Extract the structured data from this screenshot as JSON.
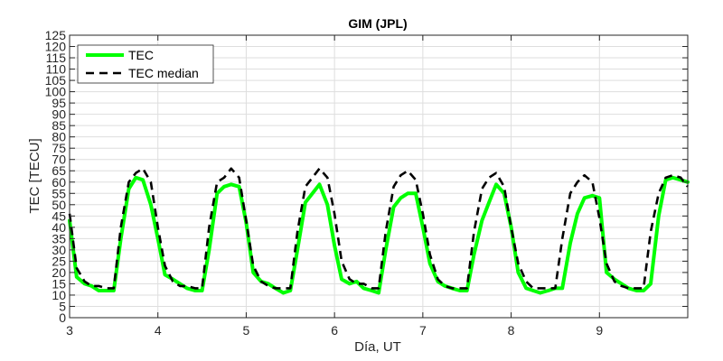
{
  "chart_data": {
    "type": "line",
    "title": "GIM (JPL)",
    "xlabel": "Día, UT",
    "ylabel": "TEC [TECU]",
    "xlim": [
      3,
      10
    ],
    "ylim": [
      0,
      125
    ],
    "xticks": [
      3,
      4,
      5,
      6,
      7,
      8,
      9
    ],
    "yticks": [
      0,
      5,
      10,
      15,
      20,
      25,
      30,
      35,
      40,
      45,
      50,
      55,
      60,
      65,
      70,
      75,
      80,
      85,
      90,
      95,
      100,
      105,
      110,
      115,
      120,
      125
    ],
    "grid": true,
    "legend_position": "top-left",
    "colors": {
      "tec": "#00ff00",
      "median": "#000000"
    },
    "series": [
      {
        "name": "TEC",
        "style": "solid",
        "x": [
          3.0,
          3.08,
          3.17,
          3.25,
          3.33,
          3.42,
          3.5,
          3.58,
          3.67,
          3.75,
          3.83,
          3.92,
          4.0,
          4.08,
          4.17,
          4.25,
          4.33,
          4.42,
          4.5,
          4.58,
          4.67,
          4.75,
          4.83,
          4.92,
          5.0,
          5.08,
          5.17,
          5.25,
          5.33,
          5.42,
          5.5,
          5.58,
          5.67,
          5.75,
          5.83,
          5.92,
          6.0,
          6.08,
          6.17,
          6.25,
          6.33,
          6.42,
          6.5,
          6.58,
          6.67,
          6.75,
          6.83,
          6.92,
          7.0,
          7.08,
          7.17,
          7.25,
          7.33,
          7.42,
          7.5,
          7.58,
          7.67,
          7.75,
          7.83,
          7.92,
          8.0,
          8.08,
          8.17,
          8.25,
          8.33,
          8.42,
          8.5,
          8.58,
          8.67,
          8.75,
          8.83,
          8.92,
          9.0,
          9.08,
          9.17,
          9.25,
          9.33,
          9.42,
          9.5,
          9.58,
          9.67,
          9.75,
          9.83,
          9.92,
          10.0
        ],
        "y": [
          43,
          18,
          15,
          14,
          12,
          12,
          12,
          35,
          57,
          62,
          61,
          50,
          35,
          19,
          17,
          15,
          13,
          12,
          12,
          30,
          55,
          58,
          59,
          58,
          42,
          20,
          16,
          15,
          13,
          11,
          12,
          30,
          51,
          55,
          59,
          50,
          32,
          17,
          15,
          16,
          13,
          12,
          11,
          30,
          49,
          53,
          55,
          55,
          40,
          24,
          16,
          14,
          13,
          12,
          12,
          28,
          43,
          51,
          59,
          55,
          40,
          20,
          13,
          12,
          11,
          12,
          13,
          13,
          33,
          46,
          53,
          54,
          53,
          20,
          17,
          15,
          13,
          12,
          12,
          15,
          45,
          61,
          62,
          61,
          60
        ]
      },
      {
        "name": "TEC median",
        "style": "dashed",
        "x": [
          3.0,
          3.08,
          3.17,
          3.25,
          3.33,
          3.42,
          3.5,
          3.58,
          3.67,
          3.75,
          3.83,
          3.92,
          4.0,
          4.08,
          4.17,
          4.25,
          4.33,
          4.42,
          4.5,
          4.58,
          4.67,
          4.75,
          4.83,
          4.92,
          5.0,
          5.08,
          5.17,
          5.25,
          5.33,
          5.42,
          5.5,
          5.58,
          5.67,
          5.75,
          5.83,
          5.92,
          6.0,
          6.08,
          6.17,
          6.25,
          6.33,
          6.42,
          6.5,
          6.58,
          6.67,
          6.75,
          6.83,
          6.92,
          7.0,
          7.08,
          7.17,
          7.25,
          7.33,
          7.42,
          7.5,
          7.58,
          7.67,
          7.75,
          7.83,
          7.92,
          8.0,
          8.08,
          8.17,
          8.25,
          8.33,
          8.42,
          8.5,
          8.58,
          8.67,
          8.75,
          8.83,
          8.92,
          9.0,
          9.08,
          9.17,
          9.25,
          9.33,
          9.42,
          9.5,
          9.58,
          9.67,
          9.75,
          9.83,
          9.92,
          10.0
        ],
        "y": [
          46,
          22,
          16,
          14,
          14,
          13,
          13,
          40,
          60,
          64,
          66,
          60,
          40,
          23,
          16,
          14,
          14,
          13,
          13,
          40,
          60,
          62,
          66,
          62,
          43,
          23,
          16,
          14,
          13,
          13,
          13,
          38,
          58,
          62,
          66,
          62,
          46,
          25,
          17,
          15,
          15,
          13,
          13,
          38,
          58,
          63,
          65,
          61,
          46,
          28,
          17,
          14,
          13,
          13,
          13,
          38,
          57,
          62,
          64,
          58,
          40,
          24,
          16,
          13,
          13,
          13,
          13,
          35,
          55,
          60,
          63,
          60,
          44,
          24,
          16,
          14,
          13,
          13,
          13,
          38,
          55,
          62,
          63,
          62,
          58
        ]
      }
    ]
  }
}
